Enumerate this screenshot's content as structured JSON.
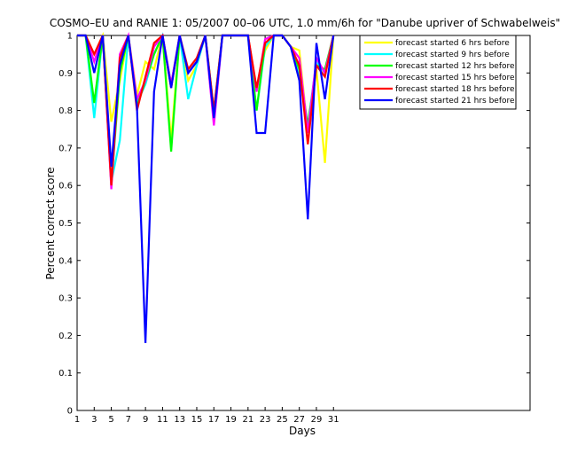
{
  "chart_data": {
    "type": "line",
    "title": "COSMO–EU and RANIE 1: 05/2007 00–06 UTC, 1.0 mm/6h for \"Danube upriver of Schwabelweis\"",
    "xlabel": "Days",
    "ylabel": "Percent correct score",
    "xlim": [
      1,
      54
    ],
    "ylim": [
      0,
      1
    ],
    "x_ticks": [
      "1",
      "3",
      "5",
      "7",
      "9",
      "11",
      "13",
      "15",
      "17",
      "19",
      "21",
      "23",
      "25",
      "27",
      "29",
      "31"
    ],
    "y_ticks": [
      "0",
      "0.1",
      "0.2",
      "0.3",
      "0.4",
      "0.5",
      "0.6",
      "0.7",
      "0.8",
      "0.9",
      "1"
    ],
    "legend_position": "top-right",
    "x": [
      1,
      2,
      3,
      4,
      5,
      6,
      7,
      8,
      9,
      10,
      11,
      12,
      13,
      14,
      15,
      16,
      17,
      18,
      19,
      20,
      21,
      22,
      23,
      24,
      25,
      26,
      27,
      28,
      29,
      30,
      31
    ],
    "series": [
      {
        "name": "forecast started 6 hrs before",
        "color": "#ffff00",
        "values": [
          1,
          1,
          0.95,
          1,
          0.77,
          0.88,
          1,
          0.84,
          0.93,
          0.91,
          1,
          0.72,
          1,
          0.88,
          0.92,
          1,
          0.78,
          1,
          1,
          1,
          1,
          0.85,
          0.96,
          1,
          1,
          0.97,
          0.96,
          0.74,
          0.91,
          0.66,
          1
        ]
      },
      {
        "name": "forecast started 9 hrs before",
        "color": "#00ffff",
        "values": [
          1,
          1,
          0.78,
          1,
          0.61,
          0.72,
          1,
          0.82,
          0.87,
          0.95,
          1,
          0.87,
          1,
          0.83,
          0.92,
          1,
          0.77,
          1,
          1,
          1,
          1,
          0.8,
          0.97,
          1,
          1,
          0.97,
          0.89,
          0.76,
          0.93,
          0.9,
          1
        ]
      },
      {
        "name": "forecast started 12 hrs before",
        "color": "#00ff00",
        "values": [
          1,
          1,
          0.82,
          1,
          0.6,
          0.9,
          1,
          0.81,
          0.88,
          0.95,
          1,
          0.69,
          1,
          0.9,
          0.93,
          1,
          0.8,
          1,
          1,
          1,
          1,
          0.8,
          0.98,
          1,
          1,
          0.97,
          0.91,
          0.76,
          0.92,
          0.91,
          1
        ]
      },
      {
        "name": "forecast started 15 hrs before",
        "color": "#ff00ff",
        "values": [
          1,
          1,
          0.93,
          1,
          0.59,
          0.95,
          1,
          0.83,
          0.88,
          0.97,
          1,
          0.87,
          1,
          0.9,
          0.93,
          1,
          0.76,
          1,
          1,
          1,
          1,
          0.85,
          0.99,
          1,
          1,
          0.97,
          0.94,
          0.74,
          0.94,
          0.9,
          1
        ]
      },
      {
        "name": "forecast started 18 hrs before",
        "color": "#ff0000",
        "values": [
          1,
          1,
          0.95,
          1,
          0.6,
          0.94,
          1,
          0.8,
          0.89,
          0.98,
          1,
          0.86,
          1,
          0.91,
          0.94,
          1,
          0.8,
          1,
          1,
          1,
          1,
          0.86,
          0.98,
          1,
          1,
          0.97,
          0.92,
          0.71,
          0.92,
          0.89,
          1
        ]
      },
      {
        "name": "forecast started 21 hrs before",
        "color": "#0000ff",
        "values": [
          1,
          1,
          0.9,
          1,
          0.65,
          0.92,
          1,
          0.81,
          0.18,
          0.85,
          1,
          0.86,
          1,
          0.9,
          0.93,
          1,
          0.78,
          1,
          1,
          1,
          1,
          0.74,
          0.74,
          1,
          1,
          0.97,
          0.88,
          0.51,
          0.98,
          0.83,
          1
        ]
      }
    ]
  }
}
